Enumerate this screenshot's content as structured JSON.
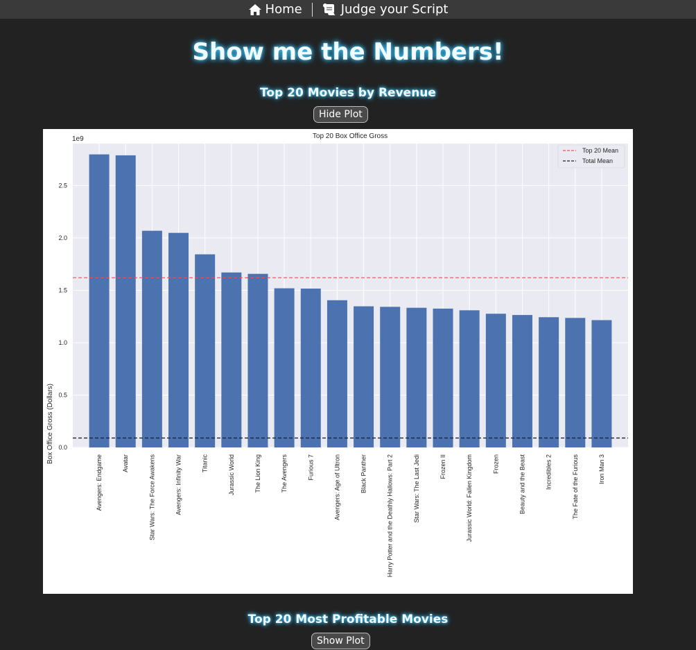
{
  "nav": {
    "home_label": "Home",
    "home_icon": "home-icon",
    "judge_label": "Judge your Script",
    "judge_icon": "scroll-icon"
  },
  "page_title": "Show me the Numbers!",
  "sections": [
    {
      "title": "Top 20 Movies by Revenue",
      "button_label": "Hide Plot"
    },
    {
      "title": "Top 20 Most Profitable Movies",
      "button_label": "Show Plot"
    }
  ],
  "colors": {
    "background": "#222222",
    "nav_bar": "#3a3a3a",
    "title_glow": "#4fd0ff",
    "bar": "#4c72b0",
    "plot_bg": "#eaeaf2",
    "top20_mean_line": "#e15759",
    "total_mean_line": "#222222"
  },
  "chart_data": {
    "type": "bar",
    "title": "Top 20 Box Office Gross",
    "xlabel": "",
    "ylabel": "Box Office Gross (Dollars)",
    "y_offset_label": "1e9",
    "ylim": [
      0,
      2.9
    ],
    "yticks": [
      0.0,
      0.5,
      1.0,
      1.5,
      2.0,
      2.5
    ],
    "ytick_labels": [
      "0.0",
      "0.5",
      "1.0",
      "1.5",
      "2.0",
      "2.5"
    ],
    "grid": true,
    "legend_position": "top-right",
    "categories": [
      "Avengers: Endgame",
      "Avatar",
      "Star Wars: The Force Awakens",
      "Avengers: Infinity War",
      "Titanic",
      "Jurassic World",
      "The Lion King",
      "The Avengers",
      "Furious 7",
      "Avengers: Age of Ultron",
      "Black Panther",
      "Harry Potter and the Deathly Hallows: Part 2",
      "Star Wars: The Last Jedi",
      "Frozen II",
      "Jurassic World: Fallen Kingdom",
      "Frozen",
      "Beauty and the Beast",
      "Incredibles 2",
      "The Fate of the Furious",
      "Iron Man 3"
    ],
    "values": [
      2.797,
      2.788,
      2.068,
      2.048,
      1.843,
      1.67,
      1.657,
      1.519,
      1.516,
      1.405,
      1.347,
      1.342,
      1.333,
      1.325,
      1.309,
      1.276,
      1.264,
      1.243,
      1.236,
      1.215
    ],
    "reference_lines": [
      {
        "name": "Top 20 Mean",
        "value": 1.62,
        "style": "dashed"
      },
      {
        "name": "Total Mean",
        "value": 0.09,
        "style": "dashed"
      }
    ]
  }
}
